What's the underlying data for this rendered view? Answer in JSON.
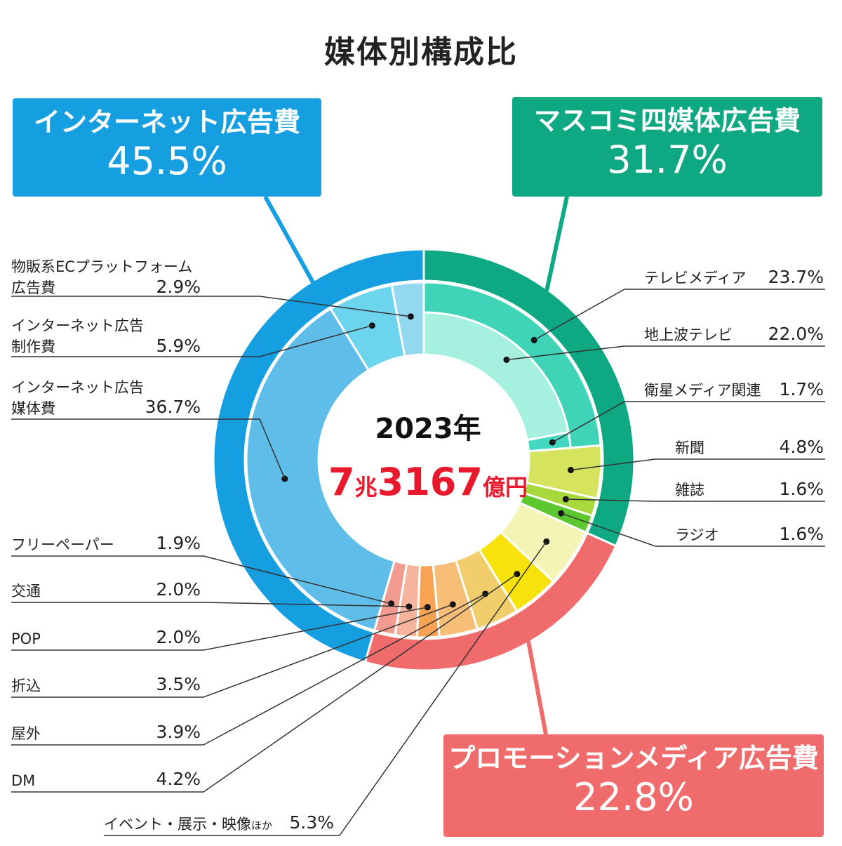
{
  "title": "媒体別構成比",
  "center": {
    "year": "2023年",
    "total_num1": "7",
    "total_unit1": "兆",
    "total_num2": "3167",
    "total_unit2": "億円"
  },
  "colors": {
    "internet": "#159fe0",
    "mass": "#0ea882",
    "promo": "#f06b6b"
  },
  "chart_data": {
    "type": "pie",
    "title": "媒体別構成比",
    "groups": [
      {
        "key": "mass",
        "name": "マスコミ四媒体広告費",
        "value": 31.7,
        "value_label": "31.7%",
        "color": "#0ea882"
      },
      {
        "key": "promo",
        "name": "プロモーションメディア広告費",
        "value": 22.8,
        "value_label": "22.8%",
        "color": "#f06b6b"
      },
      {
        "key": "internet",
        "name": "インターネット広告費",
        "value": 45.5,
        "value_label": "45.5%",
        "color": "#159fe0"
      }
    ],
    "segments": [
      {
        "key": "tv",
        "label": "テレビメディア",
        "value": 23.7,
        "value_label": "23.7%",
        "group": "mass",
        "color": "#3fd4b8"
      },
      {
        "key": "newspaper",
        "label": "新聞",
        "value": 4.8,
        "value_label": "4.8%",
        "group": "mass",
        "color": "#d6e35c"
      },
      {
        "key": "magazine",
        "label": "雑誌",
        "value": 1.6,
        "value_label": "1.6%",
        "group": "mass",
        "color": "#a7d83c"
      },
      {
        "key": "radio",
        "label": "ラジオ",
        "value": 1.6,
        "value_label": "1.6%",
        "group": "mass",
        "color": "#5cc72e"
      },
      {
        "key": "event",
        "label": "イベント・展示・映像",
        "label_suffix": "ほか",
        "value": 5.3,
        "value_label": "5.3%",
        "group": "promo",
        "color": "#f4f4b5"
      },
      {
        "key": "dm",
        "label": "DM",
        "value": 4.2,
        "value_label": "4.2%",
        "group": "promo",
        "color": "#f7e20b"
      },
      {
        "key": "outdoor",
        "label": "屋外",
        "value": 3.9,
        "value_label": "3.9%",
        "group": "promo",
        "color": "#f2cd6b"
      },
      {
        "key": "insert",
        "label": "折込",
        "value": 3.5,
        "value_label": "3.5%",
        "group": "promo",
        "color": "#f7be78"
      },
      {
        "key": "pop",
        "label": "POP",
        "value": 2.0,
        "value_label": "2.0%",
        "group": "promo",
        "color": "#f7a353"
      },
      {
        "key": "transit",
        "label": "交通",
        "value": 2.0,
        "value_label": "2.0%",
        "group": "promo",
        "color": "#f5b49b"
      },
      {
        "key": "freepaper",
        "label": "フリーペーパー",
        "value": 1.9,
        "value_label": "1.9%",
        "group": "promo",
        "color": "#f29b91"
      },
      {
        "key": "net_media",
        "label_line1": "インターネット広告",
        "label_line2": "媒体費",
        "value": 36.7,
        "value_label": "36.7%",
        "group": "internet",
        "color": "#5fbde9"
      },
      {
        "key": "net_production",
        "label_line1": "インターネット広告",
        "label_line2": "制作費",
        "value": 5.9,
        "value_label": "5.9%",
        "group": "internet",
        "color": "#6dd4ee"
      },
      {
        "key": "net_ec",
        "label_line1": "物販系ECプラットフォーム",
        "label_line2": "広告費",
        "value": 2.9,
        "value_label": "2.9%",
        "group": "internet",
        "color": "#92d9ef"
      }
    ],
    "sub_segments": [
      {
        "key": "terrestrial",
        "label": "地上波テレビ",
        "value": 22.0,
        "value_label": "22.0%",
        "parent": "tv",
        "color": "#a6f0e0"
      },
      {
        "key": "satellite",
        "label": "衛星メディア関連",
        "value": 1.7,
        "value_label": "1.7%",
        "parent": "tv",
        "color": "#44d8c3"
      }
    ]
  }
}
